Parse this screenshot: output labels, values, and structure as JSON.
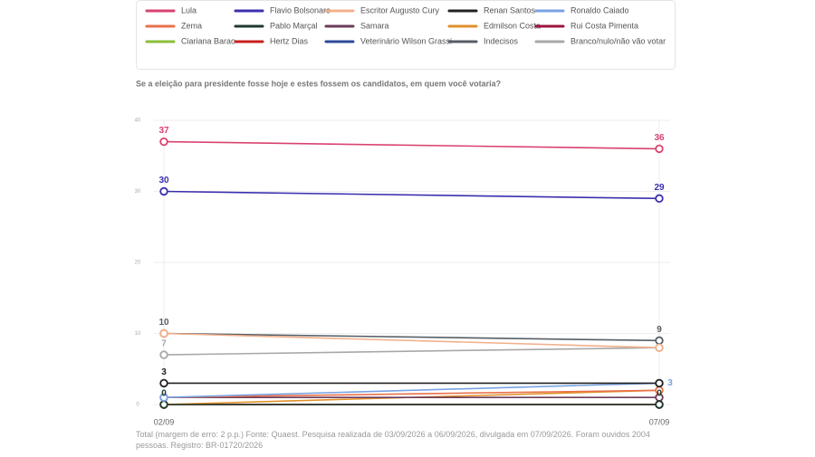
{
  "chart_data": {
    "type": "line",
    "title": "Se a eleição para presidente fosse hoje e estes fossem os candidatos, em quem você votaria?",
    "footnote": "Total (margem de erro: 2 p.p.) Fonte: Quaest. Pesquisa realizada de 03/09/2026 a 06/09/2026, divulgada em 07/09/2026. Foram ouvidos 2004 pessoas. Registro: BR-01720/2026",
    "categories": [
      "02/09",
      "07/09"
    ],
    "ylim": [
      0,
      40
    ],
    "yticks": [
      0,
      10,
      20,
      30,
      40
    ],
    "grid": true,
    "series": [
      {
        "name": "Lula",
        "color": "#d9426f",
        "values": [
          37,
          36
        ],
        "value_labels": [
          "37",
          "36"
        ]
      },
      {
        "name": "Flavio Bolsonaro",
        "color": "#3b2fae",
        "values": [
          30,
          29
        ],
        "value_labels": [
          "30",
          "29"
        ]
      },
      {
        "name": "Escritor Augusto Cury",
        "color": "#f2b08c",
        "values": [
          10,
          8
        ],
        "value_labels": [
          null,
          null
        ]
      },
      {
        "name": "Renan Santos",
        "color": "#222222",
        "values": [
          3,
          3
        ],
        "value_labels": [
          "3",
          null
        ]
      },
      {
        "name": "Ronaldo Caiado",
        "color": "#79a3e3",
        "values": [
          1,
          3
        ],
        "value_labels": [
          null,
          "3"
        ]
      },
      {
        "name": "Zema",
        "color": "#e8714b",
        "values": [
          1,
          2
        ],
        "value_labels": [
          null,
          null
        ]
      },
      {
        "name": "Pablo Marçal",
        "color": "#1f3a2e",
        "values": [
          0,
          0
        ],
        "value_labels": [
          "0",
          "0"
        ]
      },
      {
        "name": "Samara",
        "color": "#6b3b5a",
        "values": [
          1,
          1
        ],
        "value_labels": [
          null,
          null
        ]
      },
      {
        "name": "Edmilson Costa",
        "color": "#e0902a",
        "values": [
          0,
          2
        ],
        "value_labels": [
          null,
          null
        ]
      },
      {
        "name": "Rui Costa Pimenta",
        "color": "#a0143f",
        "values": [
          0,
          0
        ],
        "value_labels": [
          null,
          null
        ]
      },
      {
        "name": "Ciariana Barao",
        "color": "#8bbf3a",
        "values": [
          0,
          0
        ],
        "value_labels": [
          null,
          null
        ]
      },
      {
        "name": "Hertz Dias",
        "color": "#c8201e",
        "values": [
          0,
          0
        ],
        "value_labels": [
          null,
          null
        ]
      },
      {
        "name": "Veterinário Wilson Grassi",
        "color": "#2c4a9a",
        "values": [
          0,
          0
        ],
        "value_labels": [
          null,
          null
        ]
      },
      {
        "name": "Indecisos",
        "color": "#555e66",
        "values": [
          10,
          9
        ],
        "value_labels": [
          "10",
          "9"
        ]
      },
      {
        "name": "Branco/nulo/não vão votar",
        "color": "#a8a8a8",
        "values": [
          7,
          8
        ],
        "value_labels": [
          "7",
          null
        ]
      }
    ]
  }
}
